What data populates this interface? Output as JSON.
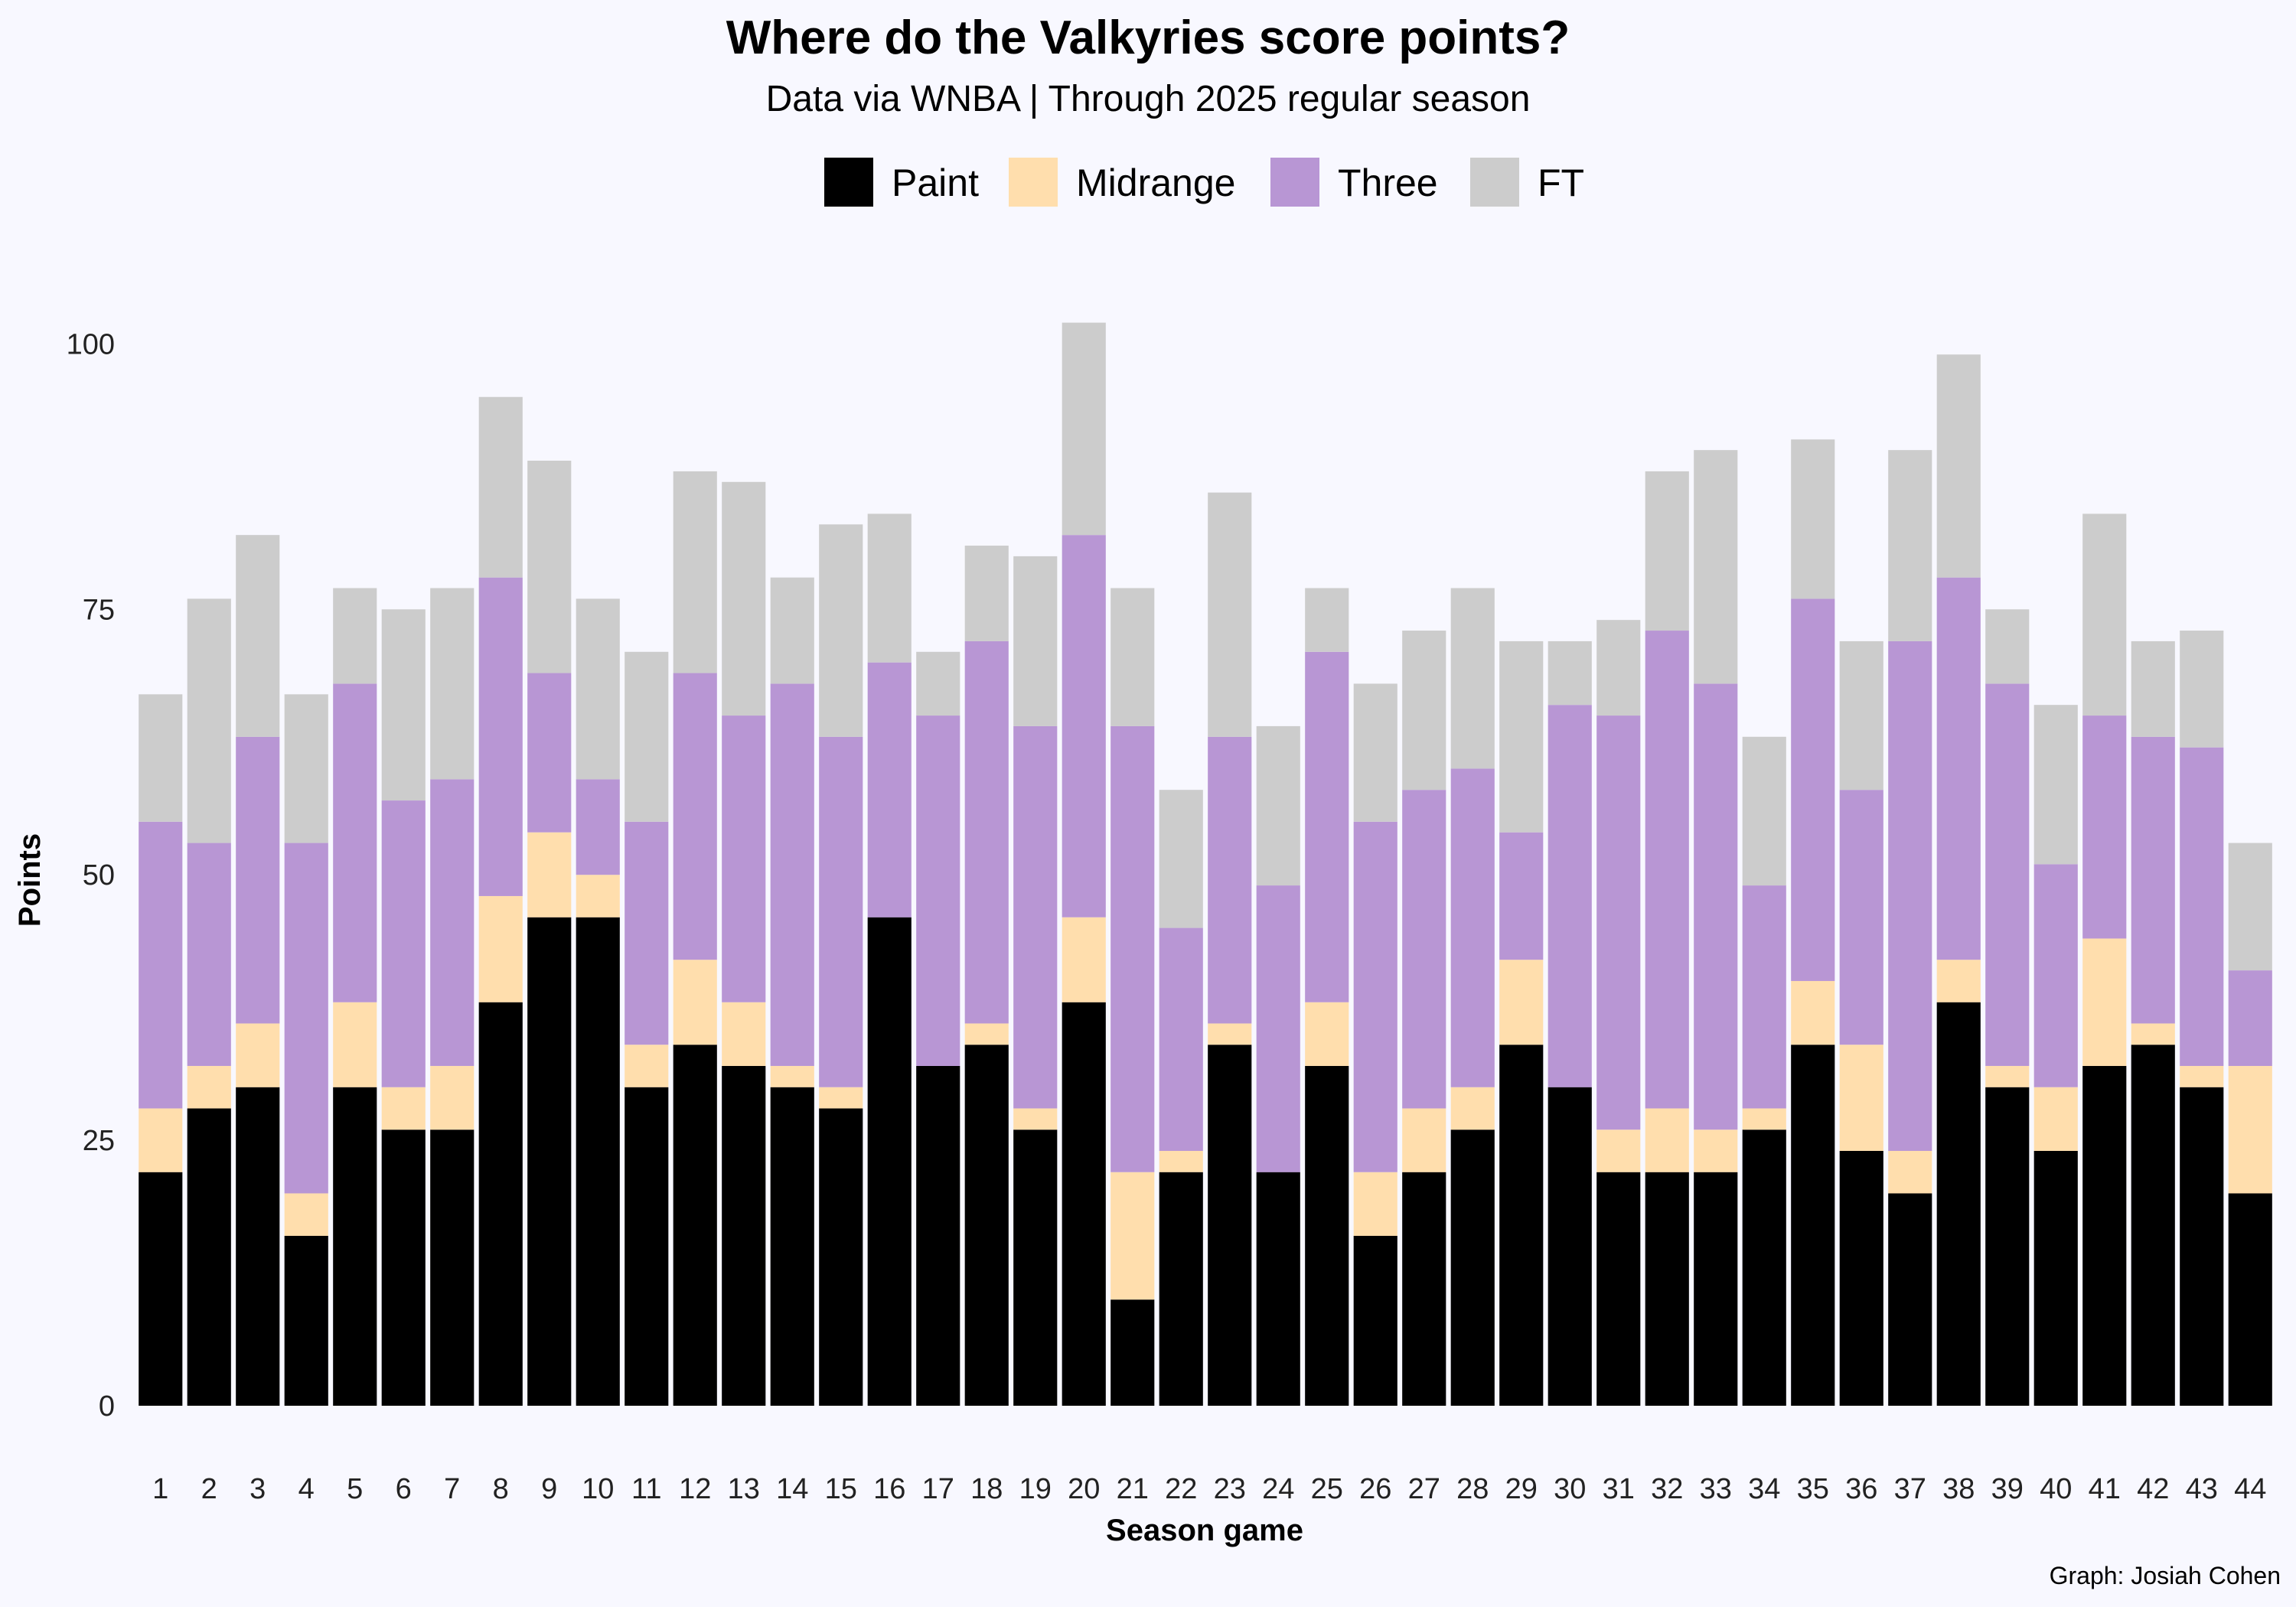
{
  "chart_data": {
    "type": "bar",
    "stacked": true,
    "title": "Where do the Valkyries score points?",
    "subtitle": "Data via WNBA  |  Through 2025 regular season",
    "xlabel": "Season game",
    "ylabel": "Points",
    "caption": "Graph: Josiah Cohen",
    "ylim": [
      0,
      105
    ],
    "yticks": [
      0,
      25,
      50,
      75,
      100
    ],
    "legend_position": "top",
    "grid": false,
    "categories": [
      "1",
      "2",
      "3",
      "4",
      "5",
      "6",
      "7",
      "8",
      "9",
      "10",
      "11",
      "12",
      "13",
      "14",
      "15",
      "16",
      "17",
      "18",
      "19",
      "20",
      "21",
      "22",
      "23",
      "24",
      "25",
      "26",
      "27",
      "28",
      "29",
      "30",
      "31",
      "32",
      "33",
      "34",
      "35",
      "36",
      "37",
      "38",
      "39",
      "40",
      "41",
      "42",
      "43",
      "44"
    ],
    "series": [
      {
        "name": "Paint",
        "color": "#000000",
        "values": [
          22,
          28,
          30,
          16,
          30,
          26,
          26,
          38,
          46,
          46,
          30,
          34,
          32,
          30,
          28,
          46,
          32,
          34,
          26,
          38,
          10,
          22,
          34,
          22,
          32,
          16,
          22,
          26,
          34,
          30,
          22,
          22,
          22,
          26,
          34,
          24,
          20,
          38,
          30,
          24,
          32,
          34,
          30,
          20
        ]
      },
      {
        "name": "Midrange",
        "color": "#ffdead",
        "values": [
          6,
          4,
          6,
          4,
          8,
          4,
          6,
          10,
          8,
          4,
          4,
          8,
          6,
          2,
          2,
          0,
          0,
          2,
          2,
          8,
          12,
          2,
          2,
          0,
          6,
          6,
          6,
          4,
          8,
          0,
          4,
          6,
          4,
          2,
          6,
          10,
          4,
          4,
          2,
          6,
          12,
          2,
          2,
          12
        ]
      },
      {
        "name": "Three",
        "color": "#b896d4",
        "values": [
          27,
          21,
          27,
          33,
          30,
          27,
          27,
          30,
          15,
          9,
          21,
          27,
          27,
          36,
          33,
          24,
          33,
          36,
          36,
          36,
          42,
          21,
          27,
          27,
          33,
          33,
          30,
          30,
          12,
          36,
          39,
          45,
          42,
          21,
          36,
          24,
          48,
          36,
          36,
          21,
          21,
          27,
          30,
          9
        ]
      },
      {
        "name": "FT",
        "color": "#cccccc",
        "values": [
          12,
          23,
          19,
          14,
          9,
          18,
          18,
          17,
          20,
          17,
          16,
          19,
          22,
          10,
          20,
          14,
          6,
          9,
          16,
          20,
          13,
          13,
          23,
          15,
          6,
          13,
          15,
          17,
          18,
          6,
          9,
          15,
          22,
          14,
          15,
          14,
          18,
          21,
          7,
          15,
          19,
          9,
          11,
          12
        ]
      }
    ]
  }
}
